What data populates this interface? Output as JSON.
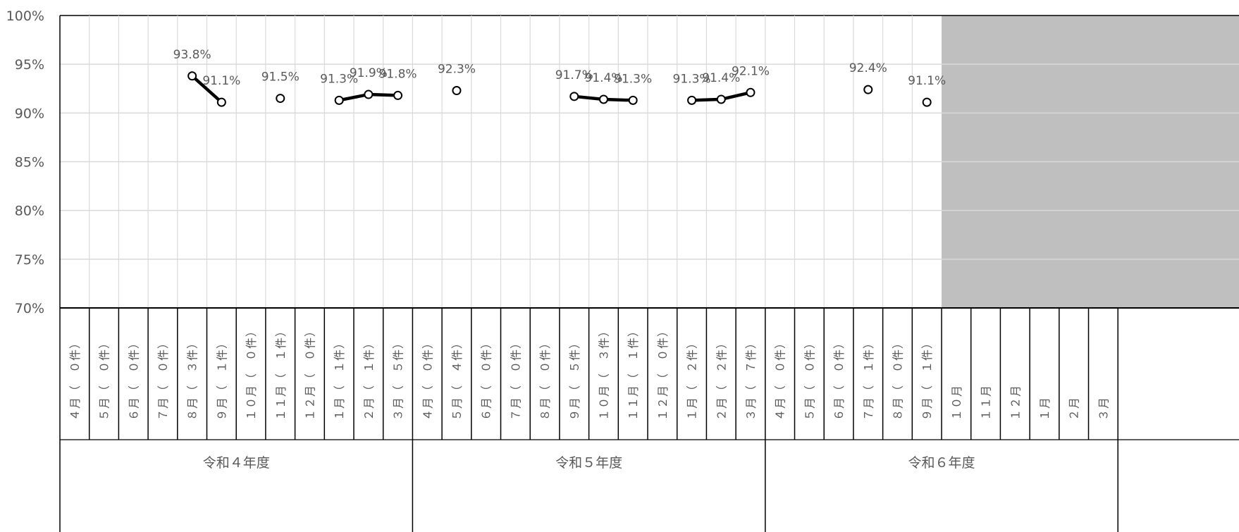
{
  "chart_data": {
    "type": "line",
    "title": "",
    "ylim": [
      70,
      100
    ],
    "y_ticks": [
      "70%",
      "75%",
      "80%",
      "85%",
      "90%",
      "95%",
      "100%"
    ],
    "y_tick_values": [
      70,
      75,
      80,
      85,
      90,
      95,
      100
    ],
    "grid": true,
    "categories": [
      "4月（ 0件）",
      "5月（ 0件）",
      "6月（ 0件）",
      "7月（ 0件）",
      "8月（ 3件）",
      "9月（ 1件）",
      "10月（ 0件）",
      "11月（ 1件）",
      "12月（ 0件）",
      "1月（ 1件）",
      "2月（ 1件）",
      "3月（ 5件）",
      "4月（ 0件）",
      "5月（ 4件）",
      "6月（ 0件）",
      "7月（ 0件）",
      "8月（ 0件）",
      "9月（ 5件）",
      "10月（ 3件）",
      "11月（ 1件）",
      "12月（ 0件）",
      "1月（ 2件）",
      "2月（ 2件）",
      "3月（ 7件）",
      "4月（ 0件）",
      "5月（ 0件）",
      "6月（ 0件）",
      "7月（ 1件）",
      "8月（ 0件）",
      "9月（ 1件）",
      "10月",
      "11月",
      "12月",
      "1月",
      "2月",
      "3月"
    ],
    "category_labels": [
      {
        "month": "４月",
        "count": "（　０件）"
      },
      {
        "month": "５月",
        "count": "（　０件）"
      },
      {
        "month": "６月",
        "count": "（　０件）"
      },
      {
        "month": "７月",
        "count": "（　０件）"
      },
      {
        "month": "８月",
        "count": "（　３件）"
      },
      {
        "month": "９月",
        "count": "（　１件）"
      },
      {
        "month": "１０月",
        "count": "（　０件）"
      },
      {
        "month": "１１月",
        "count": "（　１件）"
      },
      {
        "month": "１２月",
        "count": "（　０件）"
      },
      {
        "month": "１月",
        "count": "（　１件）"
      },
      {
        "month": "２月",
        "count": "（　１件）"
      },
      {
        "month": "３月",
        "count": "（　５件）"
      },
      {
        "month": "４月",
        "count": "（　０件）"
      },
      {
        "month": "５月",
        "count": "（　４件）"
      },
      {
        "month": "６月",
        "count": "（　０件）"
      },
      {
        "month": "７月",
        "count": "（　０件）"
      },
      {
        "month": "８月",
        "count": "（　０件）"
      },
      {
        "month": "９月",
        "count": "（　５件）"
      },
      {
        "month": "１０月",
        "count": "（　３件）"
      },
      {
        "month": "１１月",
        "count": "（　１件）"
      },
      {
        "month": "１２月",
        "count": "（　０件）"
      },
      {
        "month": "１月",
        "count": "（　２件）"
      },
      {
        "month": "２月",
        "count": "（　２件）"
      },
      {
        "month": "３月",
        "count": "（　７件）"
      },
      {
        "month": "４月",
        "count": "（　０件）"
      },
      {
        "month": "５月",
        "count": "（　０件）"
      },
      {
        "month": "６月",
        "count": "（　０件）"
      },
      {
        "month": "７月",
        "count": "（　１件）"
      },
      {
        "month": "８月",
        "count": "（　０件）"
      },
      {
        "month": "９月",
        "count": "（　１件）"
      },
      {
        "month": "１０月",
        "count": ""
      },
      {
        "month": "１１月",
        "count": ""
      },
      {
        "month": "１２月",
        "count": ""
      },
      {
        "month": "１月",
        "count": ""
      },
      {
        "month": "２月",
        "count": ""
      },
      {
        "month": "３月",
        "count": ""
      }
    ],
    "groups": [
      {
        "label": "令和４年度",
        "start": 0,
        "end": 11
      },
      {
        "label": "令和５年度",
        "start": 12,
        "end": 23
      },
      {
        "label": "令和６年度",
        "start": 24,
        "end": 35
      }
    ],
    "series": [
      {
        "values": [
          null,
          null,
          null,
          null,
          93.8,
          91.1,
          null,
          91.5,
          null,
          91.3,
          91.9,
          91.8,
          null,
          92.3,
          null,
          null,
          null,
          91.7,
          91.4,
          91.3,
          null,
          91.3,
          91.4,
          92.1,
          null,
          null,
          null,
          92.4,
          null,
          91.1,
          null,
          null,
          null,
          null,
          null,
          null
        ],
        "data_labels": [
          null,
          null,
          null,
          null,
          "93.8%",
          "91.1%",
          null,
          "91.5%",
          null,
          "91.3%",
          "91.9%",
          "91.8%",
          null,
          "92.3%",
          null,
          null,
          null,
          "91.7%",
          "91.4%",
          "91.3%",
          null,
          "91.3%",
          "91.4%",
          "92.1%",
          null,
          null,
          null,
          "92.4%",
          null,
          "91.1%",
          null,
          null,
          null,
          null,
          null,
          null
        ]
      }
    ],
    "shaded_from_index": 30,
    "colors": {
      "shade": "#bfbfbf",
      "line": "#000000",
      "grid": "#d9d9d9",
      "label": "#595959"
    }
  }
}
